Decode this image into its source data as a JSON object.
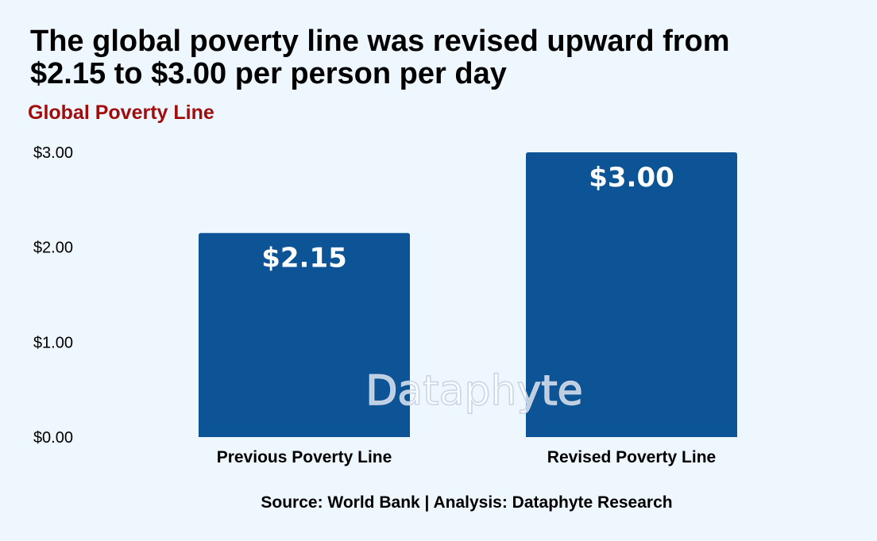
{
  "chart_data": {
    "type": "bar",
    "title_lines": [
      "The global poverty line was revised upward from",
      "$2.15 to $3.00 per person per day"
    ],
    "subtitle": "Global Poverty Line",
    "categories": [
      "Previous Poverty Line",
      "Revised Poverty Line"
    ],
    "values": [
      2.15,
      3.0
    ],
    "data_labels": [
      "$2.15",
      "$3.00"
    ],
    "yticks": [
      0,
      1,
      2,
      3
    ],
    "ytick_labels": [
      "$0.00",
      "$1.00",
      "$2.00",
      "$3.00"
    ],
    "ylim": [
      0,
      3
    ],
    "xlabel": "",
    "ylabel": "",
    "grid": false,
    "bar_color": "#0d5496",
    "source": "Source: World Bank | Analysis: Dataphyte Research",
    "watermark": "Dataphyte"
  },
  "colors": {
    "background": "#eef6fe",
    "bar": "#0d5496",
    "subtitle": "#a10d0d"
  }
}
